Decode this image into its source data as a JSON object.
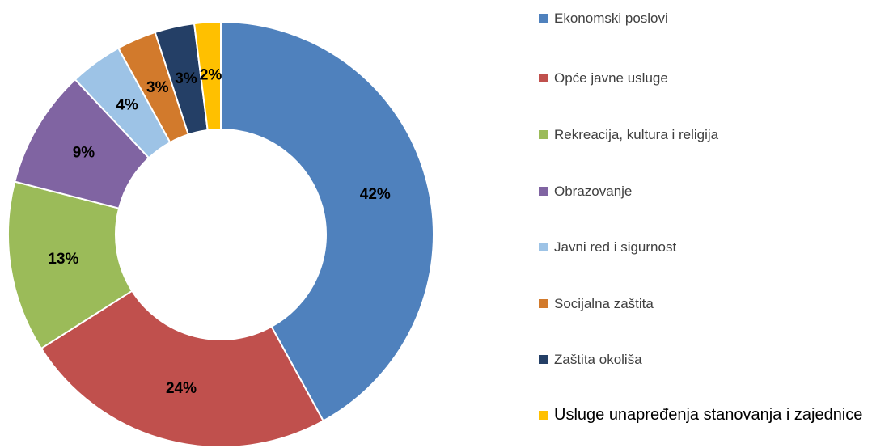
{
  "chart_data": {
    "type": "donut",
    "categories": [
      "Ekonomski poslovi",
      "Opće javne usluge",
      "Rekreacija, kultura i religija",
      "Obrazovanje",
      "Javni red i sigurnost",
      "Socijalna zaštita",
      "Zaštita okoliša",
      "Usluge unapređenja stanovanja i zajednice"
    ],
    "values": [
      42,
      24,
      13,
      9,
      4,
      3,
      3,
      2
    ],
    "value_labels": [
      "42%",
      "24%",
      "13%",
      "9%",
      "4%",
      "3%",
      "3%",
      "2%"
    ],
    "colors": [
      "#4f81bd",
      "#c0504d",
      "#9bbb59",
      "#8064a2",
      "#9dc3e6",
      "#d27a2c",
      "#243f66",
      "#ffc000"
    ],
    "legend": "right"
  }
}
